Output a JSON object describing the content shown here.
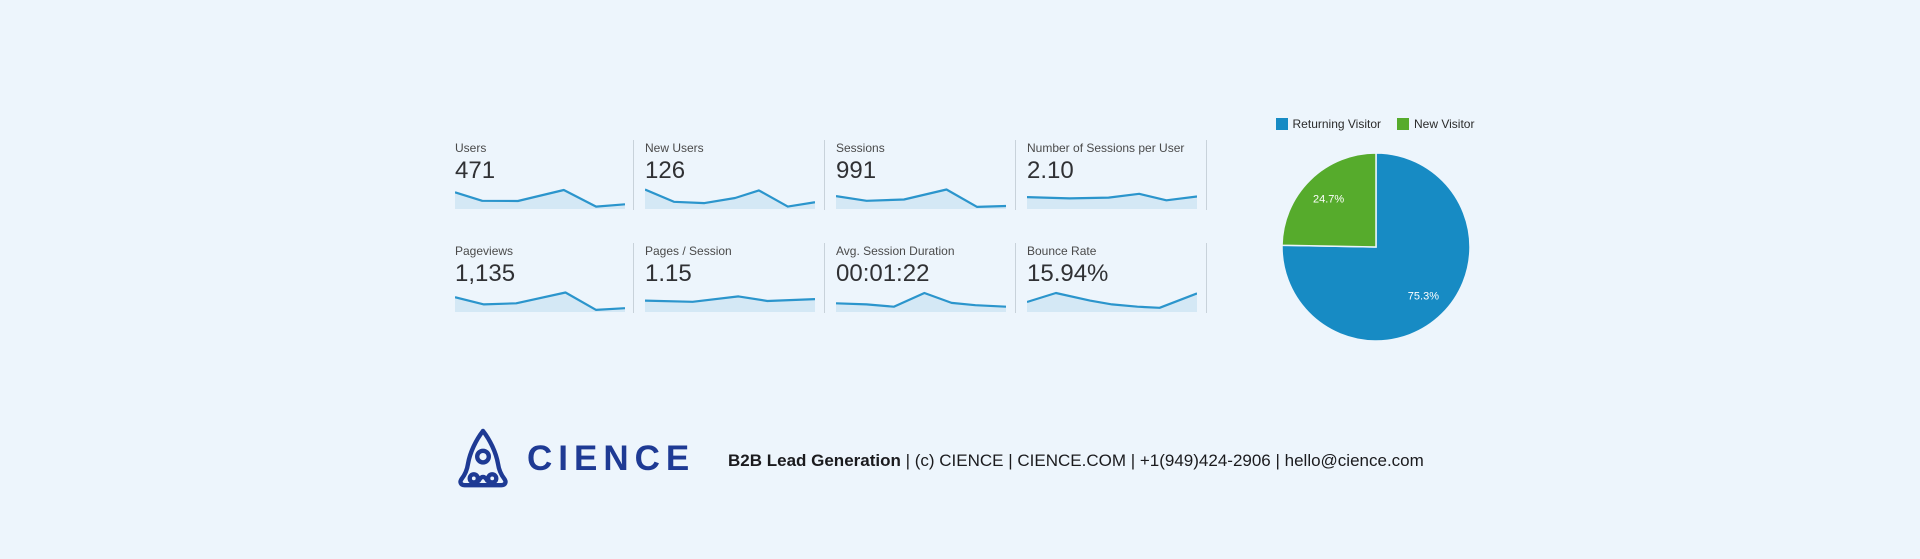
{
  "theme": {
    "bg": "#edf5fc",
    "divider": "#c8d2da",
    "label": "#4a4a4a",
    "value": "#303134",
    "spark": "#2b95cc",
    "navy": "#1e3a94",
    "text_dark": "#1b1b1e"
  },
  "metrics": {
    "cards": [
      {
        "label": "Users",
        "value": "471"
      },
      {
        "label": "New Users",
        "value": "126"
      },
      {
        "label": "Sessions",
        "value": "991"
      },
      {
        "label": "Number of Sessions per User",
        "value": "2.10"
      },
      {
        "label": "Pageviews",
        "value": "1,135"
      },
      {
        "label": "Pages / Session",
        "value": "1.15"
      },
      {
        "label": "Avg. Session Duration",
        "value": "00:01:22"
      },
      {
        "label": "Bounce Rate",
        "value": "15.94%"
      }
    ]
  },
  "chart_data": [
    {
      "type": "pie",
      "title": "",
      "legend_position": "top",
      "start_angle": "top",
      "direction": "clockwise",
      "slices": [
        {
          "label": "Returning Visitor",
          "value": 75.3,
          "display": "75.3%",
          "color": "#178bc4"
        },
        {
          "label": "New Visitor",
          "value": 24.7,
          "display": "24.7%",
          "color": "#56ab2c"
        }
      ]
    },
    {
      "type": "line",
      "name": "metric-sparklines",
      "note": "unlabeled sparklines under each metric; points normalized x 0-1, y 0(top)-1(baseline)",
      "color": "#2b95cc",
      "fill": "rgba(43,149,204,0.13)",
      "series": [
        {
          "name": "Users",
          "points": [
            [
              0,
              0.2
            ],
            [
              0.16,
              0.65
            ],
            [
              0.37,
              0.66
            ],
            [
              0.64,
              0.08
            ],
            [
              0.83,
              0.95
            ],
            [
              1,
              0.83
            ]
          ]
        },
        {
          "name": "New Users",
          "points": [
            [
              0,
              0.05
            ],
            [
              0.17,
              0.7
            ],
            [
              0.35,
              0.77
            ],
            [
              0.53,
              0.5
            ],
            [
              0.67,
              0.1
            ],
            [
              0.84,
              0.95
            ],
            [
              1,
              0.72
            ]
          ]
        },
        {
          "name": "Sessions",
          "points": [
            [
              0,
              0.4
            ],
            [
              0.18,
              0.65
            ],
            [
              0.4,
              0.58
            ],
            [
              0.65,
              0.05
            ],
            [
              0.83,
              0.97
            ],
            [
              1,
              0.92
            ]
          ]
        },
        {
          "name": "Number of Sessions per User",
          "points": [
            [
              0,
              0.45
            ],
            [
              0.25,
              0.52
            ],
            [
              0.48,
              0.48
            ],
            [
              0.66,
              0.28
            ],
            [
              0.82,
              0.62
            ],
            [
              1,
              0.42
            ]
          ]
        },
        {
          "name": "Pageviews",
          "points": [
            [
              0,
              0.3
            ],
            [
              0.17,
              0.68
            ],
            [
              0.36,
              0.62
            ],
            [
              0.65,
              0.05
            ],
            [
              0.83,
              0.97
            ],
            [
              1,
              0.88
            ]
          ]
        },
        {
          "name": "Pages / Session",
          "points": [
            [
              0,
              0.48
            ],
            [
              0.28,
              0.54
            ],
            [
              0.55,
              0.26
            ],
            [
              0.72,
              0.5
            ],
            [
              1,
              0.4
            ]
          ]
        },
        {
          "name": "Avg. Session Duration",
          "points": [
            [
              0,
              0.62
            ],
            [
              0.18,
              0.68
            ],
            [
              0.34,
              0.8
            ],
            [
              0.52,
              0.08
            ],
            [
              0.68,
              0.6
            ],
            [
              0.82,
              0.72
            ],
            [
              1,
              0.8
            ]
          ]
        },
        {
          "name": "Bounce Rate",
          "points": [
            [
              0,
              0.55
            ],
            [
              0.17,
              0.08
            ],
            [
              0.37,
              0.48
            ],
            [
              0.5,
              0.68
            ],
            [
              0.65,
              0.8
            ],
            [
              0.78,
              0.86
            ],
            [
              1,
              0.1
            ]
          ]
        }
      ]
    }
  ],
  "footer": {
    "brand": "CIENCE",
    "tagline_bold": "B2B Lead Generation",
    "contact_rest": " | (c) CIENCE | CIENCE.COM | +1(949)424-2906 | hello@cience.com"
  }
}
